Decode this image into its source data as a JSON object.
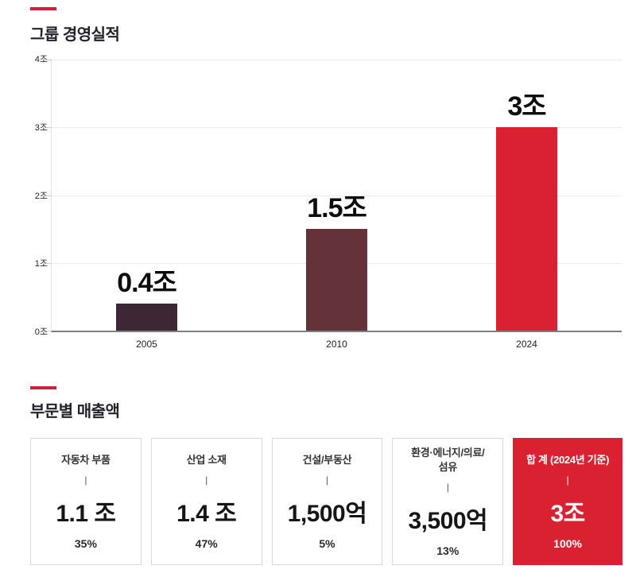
{
  "section_performance": {
    "title": "그룹 경영실적",
    "accent_color": "#d0203a"
  },
  "chart_data": {
    "type": "bar",
    "title": "그룹 경영실적",
    "categories": [
      "2005",
      "2010",
      "2024"
    ],
    "values": [
      0.4,
      1.5,
      3
    ],
    "value_labels": [
      "0.4조",
      "1.5조",
      "3조"
    ],
    "bar_colors": [
      "#3e2735",
      "#633339",
      "#d92132"
    ],
    "unit": "조",
    "ylim": [
      0,
      4
    ],
    "ytick_labels": [
      "0조",
      "1조",
      "2조",
      "3조",
      "4조"
    ],
    "grid": true,
    "legend": "none"
  },
  "section_revenue": {
    "title": "부문별 매출액",
    "accent_color": "#d0203a",
    "divider": "|",
    "cards": [
      {
        "label": "자동차 부품",
        "value": "1.1 조",
        "percent": "35%",
        "variant": "light"
      },
      {
        "label": "산업 소재",
        "value": "1.4 조",
        "percent": "47%",
        "variant": "light"
      },
      {
        "label": "건설/부동산",
        "value": "1,500억",
        "percent": "5%",
        "variant": "light"
      },
      {
        "label": "환경·에너지/의료/\n섬유",
        "value": "3,500억",
        "percent": "13%",
        "variant": "light"
      },
      {
        "label": "합 계 (2024년 기준)",
        "value": "3조",
        "percent": "100%",
        "variant": "red"
      }
    ]
  },
  "colors": {
    "accent_red": "#d0203a",
    "bar_dark_plum": "#3e2735",
    "bar_maroon": "#633339",
    "bar_red": "#d92132",
    "card_red_bg": "#d92132",
    "title_text": "#22222c",
    "axis_baseline": "#7f7f7f",
    "gridline": "#ececec"
  }
}
